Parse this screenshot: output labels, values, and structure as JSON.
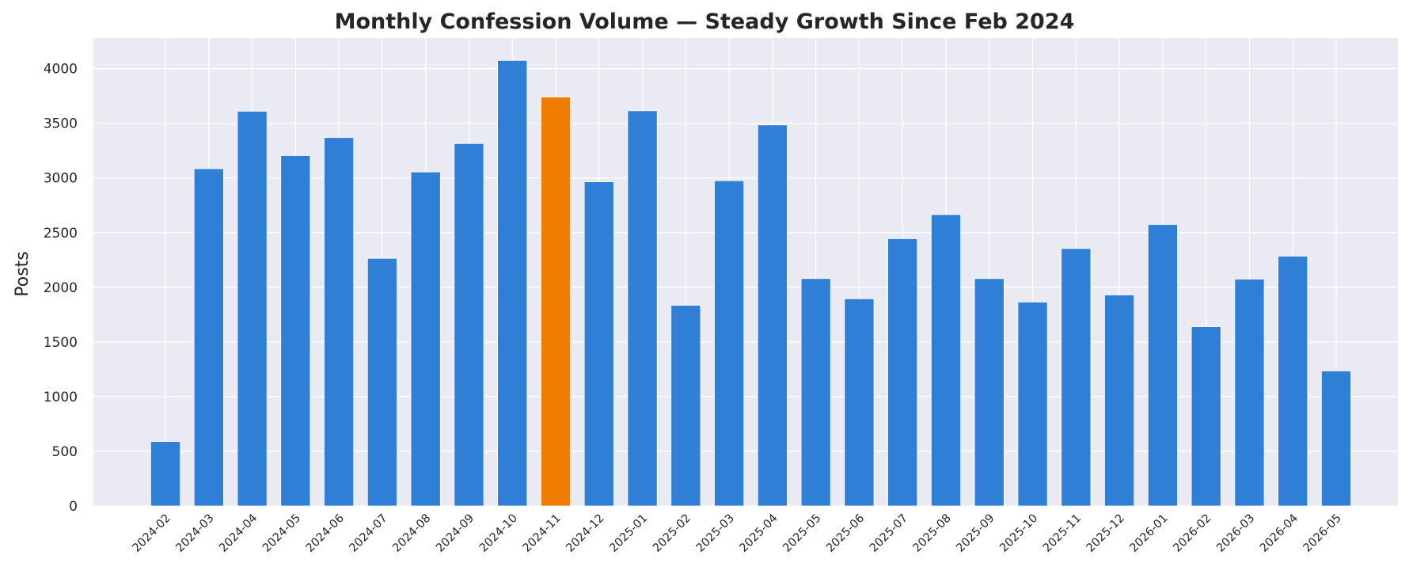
{
  "chart_data": {
    "type": "bar",
    "title": "Monthly Confession Volume — Steady Growth Since Feb 2024",
    "xlabel": "",
    "ylabel": "Posts",
    "categories": [
      "2024-02",
      "2024-03",
      "2024-04",
      "2024-05",
      "2024-06",
      "2024-07",
      "2024-08",
      "2024-09",
      "2024-10",
      "2024-11",
      "2024-12",
      "2025-01",
      "2025-02",
      "2025-03",
      "2025-04",
      "2025-05",
      "2025-06",
      "2025-07",
      "2025-08",
      "2025-09",
      "2025-10",
      "2025-11",
      "2025-12",
      "2026-01",
      "2026-02",
      "2026-03",
      "2026-04",
      "2026-05"
    ],
    "values": [
      590,
      3085,
      3610,
      3205,
      3370,
      2265,
      3055,
      3315,
      4075,
      3740,
      2965,
      3615,
      1835,
      2975,
      3485,
      2080,
      1895,
      2445,
      2665,
      2080,
      1865,
      2355,
      1930,
      2575,
      1640,
      2075,
      2285,
      1235
    ],
    "highlight_category": "2024-11",
    "ylim": [
      0,
      4280
    ],
    "yticks": [
      0,
      500,
      1000,
      1500,
      2000,
      2500,
      3000,
      3500,
      4000
    ],
    "grid": true,
    "colors": {
      "bar": "#2f7fd6",
      "highlight": "#f07d00",
      "plot_background": "#eaeaf2",
      "grid": "#ffffff"
    }
  }
}
